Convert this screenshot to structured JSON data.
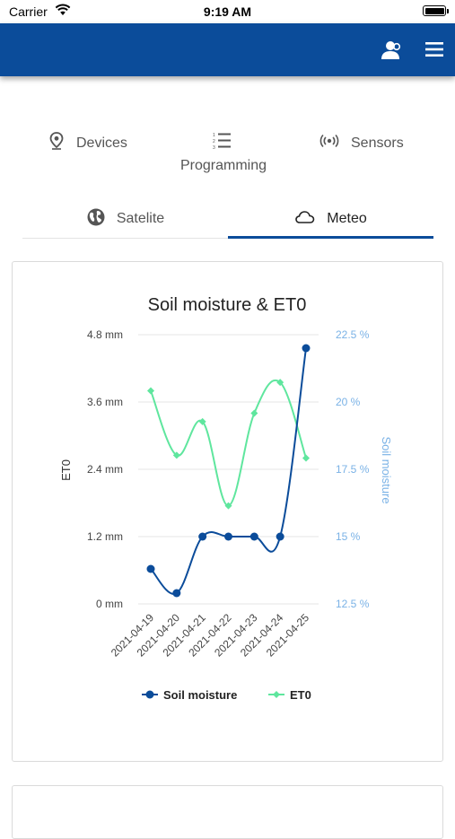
{
  "status_bar": {
    "carrier": "Carrier",
    "time": "9:19 AM"
  },
  "header": {
    "user_icon": "user-settings-icon",
    "menu_icon": "hamburger-menu-icon",
    "color": "#0b4c9a"
  },
  "nav": {
    "items": [
      {
        "label": "Devices",
        "icon": "map-pin-icon"
      },
      {
        "label": "Programming",
        "icon": "numbered-list-icon"
      },
      {
        "label": "Sensors",
        "icon": "radio-signal-icon"
      }
    ]
  },
  "tabs": [
    {
      "label": "Satelite",
      "icon": "globe-icon",
      "active": false
    },
    {
      "label": "Meteo",
      "icon": "cloud-icon",
      "active": true
    }
  ],
  "chart_data": {
    "type": "line",
    "title": "Soil moisture & ET0",
    "categories": [
      "2021-04-19",
      "2021-04-20",
      "2021-04-21",
      "2021-04-22",
      "2021-04-23",
      "2021-04-24",
      "2021-04-25"
    ],
    "series": [
      {
        "name": "Soil moisture",
        "axis": "right",
        "color": "#0b4c9a",
        "values": [
          13.8,
          12.9,
          15.0,
          15.0,
          15.0,
          15.0,
          22.0
        ]
      },
      {
        "name": "ET0",
        "axis": "left",
        "color": "#5fe69e",
        "values": [
          3.8,
          2.65,
          3.25,
          1.75,
          3.4,
          3.95,
          2.6
        ]
      }
    ],
    "ylabel": "ET0",
    "y2label": "Soil moisture",
    "ylim": [
      0,
      4.8
    ],
    "y2lim": [
      12.5,
      22.5
    ],
    "yticks": [
      "0 mm",
      "1.2 mm",
      "2.4 mm",
      "3.6 mm",
      "4.8 mm"
    ],
    "y2ticks": [
      "12.5 %",
      "15 %",
      "17.5 %",
      "20 %",
      "22.5 %"
    ],
    "grid": true,
    "legend": "bottom"
  }
}
